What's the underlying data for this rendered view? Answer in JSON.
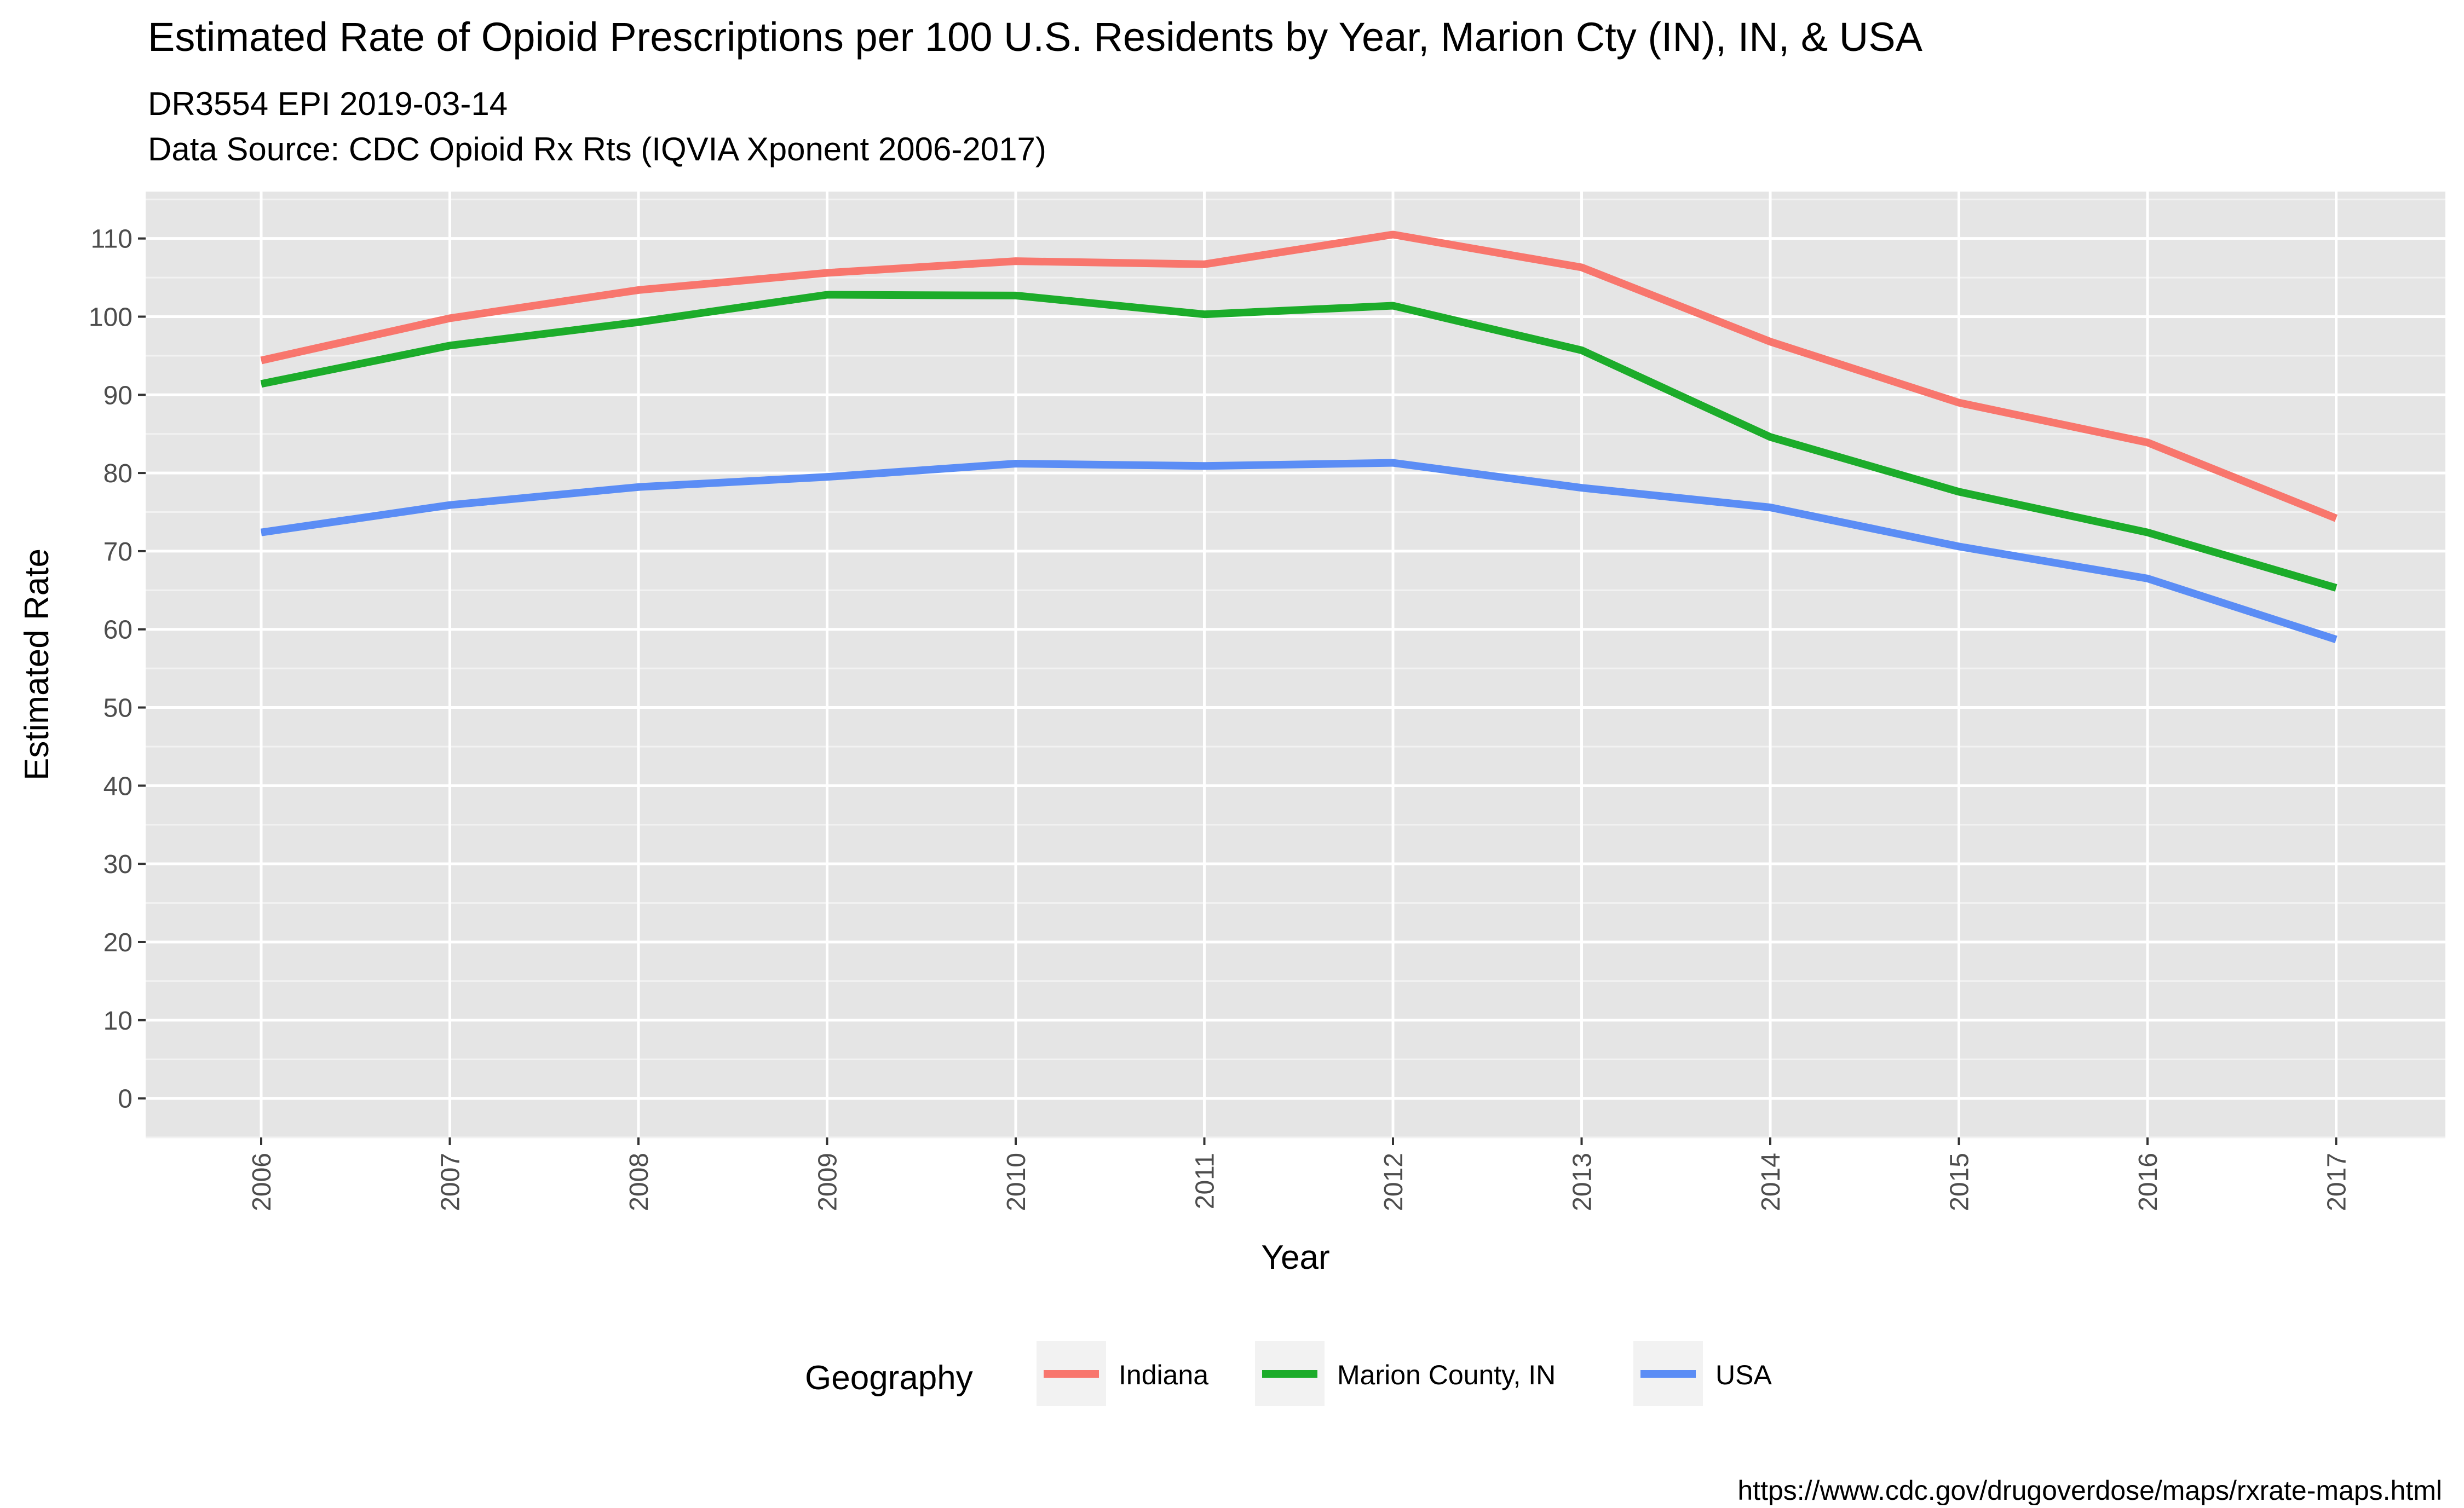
{
  "chart_data": {
    "type": "line",
    "title": "Estimated Rate of Opioid Prescriptions per 100 U.S. Residents by Year, Marion Cty (IN), IN, & USA",
    "subtitle_lines": [
      "DR3554 EPI 2019-03-14",
      "Data Source: CDC Opioid Rx Rts (IQVIA Xponent 2006-2017)"
    ],
    "caption": "https://www.cdc.gov/drugoverdose/maps/rxrate-maps.html",
    "xlabel": "Year",
    "ylabel": "Estimated Rate",
    "x": [
      "2006",
      "2007",
      "2008",
      "2009",
      "2010",
      "2011",
      "2012",
      "2013",
      "2014",
      "2015",
      "2016",
      "2017"
    ],
    "ylim": [
      -5,
      116
    ],
    "yticks": [
      0,
      10,
      20,
      30,
      40,
      50,
      60,
      70,
      80,
      90,
      100,
      110
    ],
    "grid": true,
    "legend_title": "Geography",
    "legend_position": "bottom",
    "series": [
      {
        "name": "Indiana",
        "color": "#F8766D",
        "values": [
          94.4,
          99.8,
          103.4,
          105.6,
          107.1,
          106.7,
          110.5,
          106.3,
          96.8,
          89.0,
          83.9,
          74.2
        ]
      },
      {
        "name": "Marion County, IN",
        "color": "#1CAC2A",
        "values": [
          91.4,
          96.3,
          99.3,
          102.8,
          102.7,
          100.3,
          101.4,
          95.7,
          84.6,
          77.6,
          72.4,
          65.3
        ]
      },
      {
        "name": "USA",
        "color": "#5B8DF5",
        "values": [
          72.4,
          75.9,
          78.2,
          79.5,
          81.2,
          80.9,
          81.3,
          78.1,
          75.6,
          70.6,
          66.5,
          58.7
        ]
      }
    ]
  }
}
